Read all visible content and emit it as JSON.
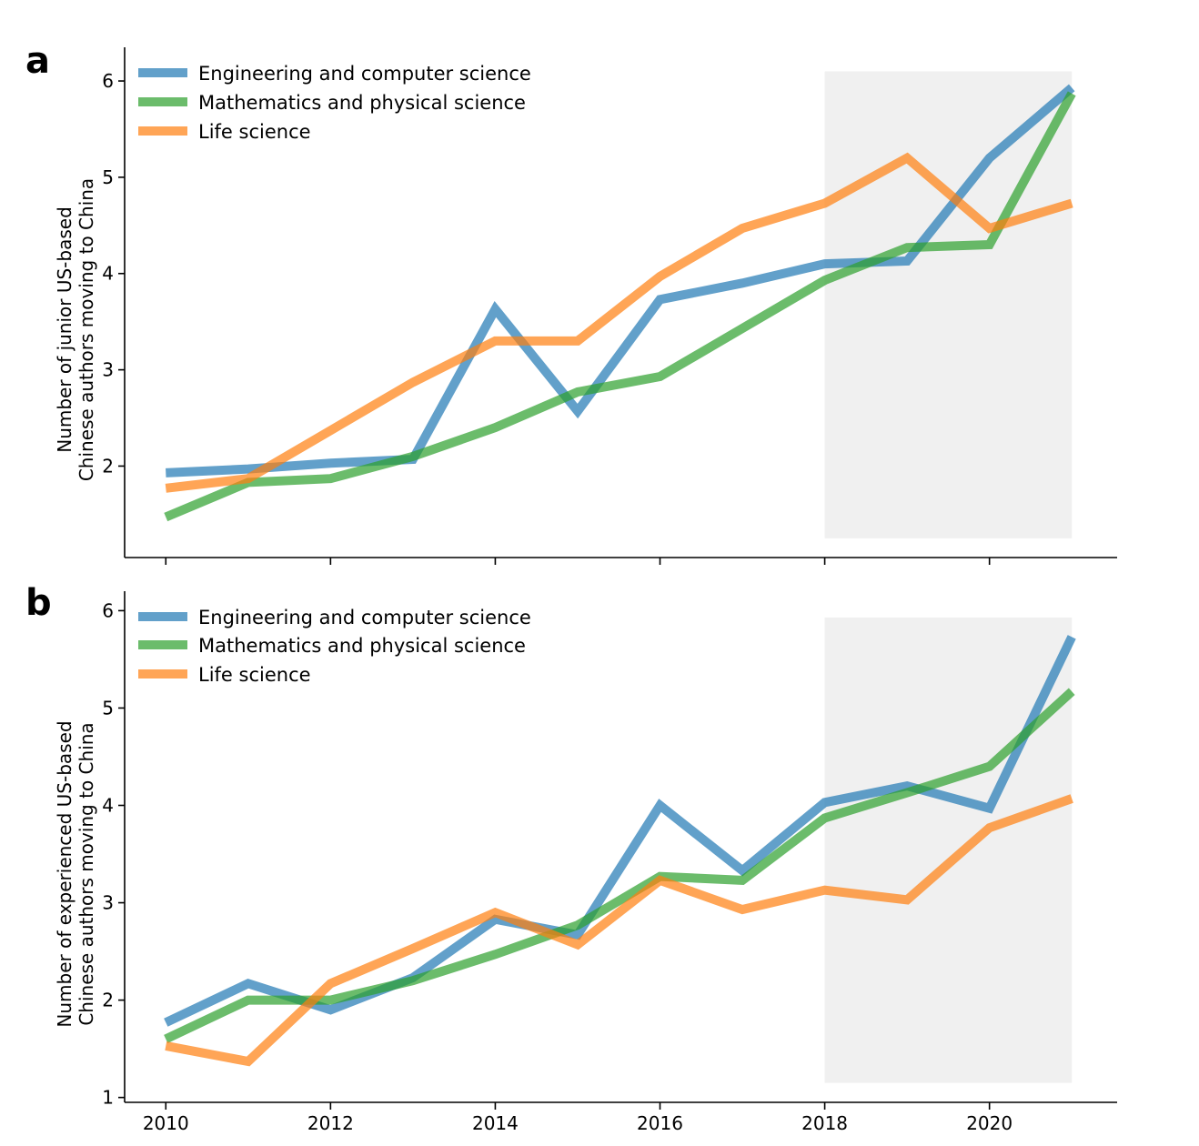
{
  "chart_data": [
    {
      "panel": "a",
      "type": "line",
      "ylabel": [
        "Number of junior US-based",
        "Chinese authors moving to China"
      ],
      "xlim": [
        2009.5,
        2021.55
      ],
      "ylim": [
        1.05,
        6.35
      ],
      "yticks": [
        2,
        3,
        4,
        5,
        6
      ],
      "xticks": [
        2010,
        2012,
        2014,
        2016,
        2018,
        2020
      ],
      "x_tick_labels_shown": false,
      "shaded_region": {
        "x": [
          2018,
          2021
        ],
        "y": [
          1.25,
          6.1
        ]
      },
      "legend_position": "top-left",
      "x": [
        2010,
        2011,
        2012,
        2013,
        2014,
        2015,
        2016,
        2017,
        2018,
        2019,
        2020,
        2021
      ],
      "series": [
        {
          "name": "Engineering and computer science",
          "color": "#1f77b4",
          "values": [
            1.93,
            1.97,
            2.03,
            2.07,
            3.63,
            2.57,
            3.73,
            3.9,
            4.1,
            4.13,
            5.2,
            5.93
          ]
        },
        {
          "name": "Mathematics and physical science",
          "color": "#2ca02c",
          "values": [
            1.47,
            1.83,
            1.87,
            2.1,
            2.4,
            2.77,
            2.93,
            3.43,
            3.93,
            4.27,
            4.3,
            5.87
          ]
        },
        {
          "name": "Life science",
          "color": "#ff7f0e",
          "values": [
            1.77,
            1.87,
            2.37,
            2.87,
            3.3,
            3.3,
            3.97,
            4.47,
            4.73,
            5.2,
            4.47,
            4.73
          ]
        }
      ]
    },
    {
      "panel": "b",
      "type": "line",
      "ylabel": [
        "Number of experienced US-based",
        "Chinese authors moving to China"
      ],
      "xlim": [
        2009.5,
        2021.55
      ],
      "ylim": [
        0.95,
        6.2
      ],
      "yticks": [
        1,
        2,
        3,
        4,
        5,
        6
      ],
      "xticks": [
        2010,
        2012,
        2014,
        2016,
        2018,
        2020
      ],
      "x_tick_labels_shown": true,
      "shaded_region": {
        "x": [
          2018,
          2021
        ],
        "y": [
          1.15,
          5.93
        ]
      },
      "legend_position": "top-left",
      "x": [
        2010,
        2011,
        2012,
        2013,
        2014,
        2015,
        2016,
        2017,
        2018,
        2019,
        2020,
        2021
      ],
      "series": [
        {
          "name": "Engineering and computer science",
          "color": "#1f77b4",
          "values": [
            1.77,
            2.17,
            1.9,
            2.23,
            2.83,
            2.67,
            4.0,
            3.33,
            4.03,
            4.2,
            3.97,
            5.73
          ]
        },
        {
          "name": "Mathematics and physical science",
          "color": "#2ca02c",
          "values": [
            1.6,
            2.0,
            2.0,
            2.2,
            2.47,
            2.77,
            3.27,
            3.23,
            3.87,
            4.13,
            4.4,
            5.17
          ]
        },
        {
          "name": "Life science",
          "color": "#ff7f0e",
          "values": [
            1.53,
            1.37,
            2.17,
            2.53,
            2.9,
            2.57,
            3.23,
            2.93,
            3.13,
            3.03,
            3.77,
            4.07
          ]
        }
      ]
    }
  ]
}
